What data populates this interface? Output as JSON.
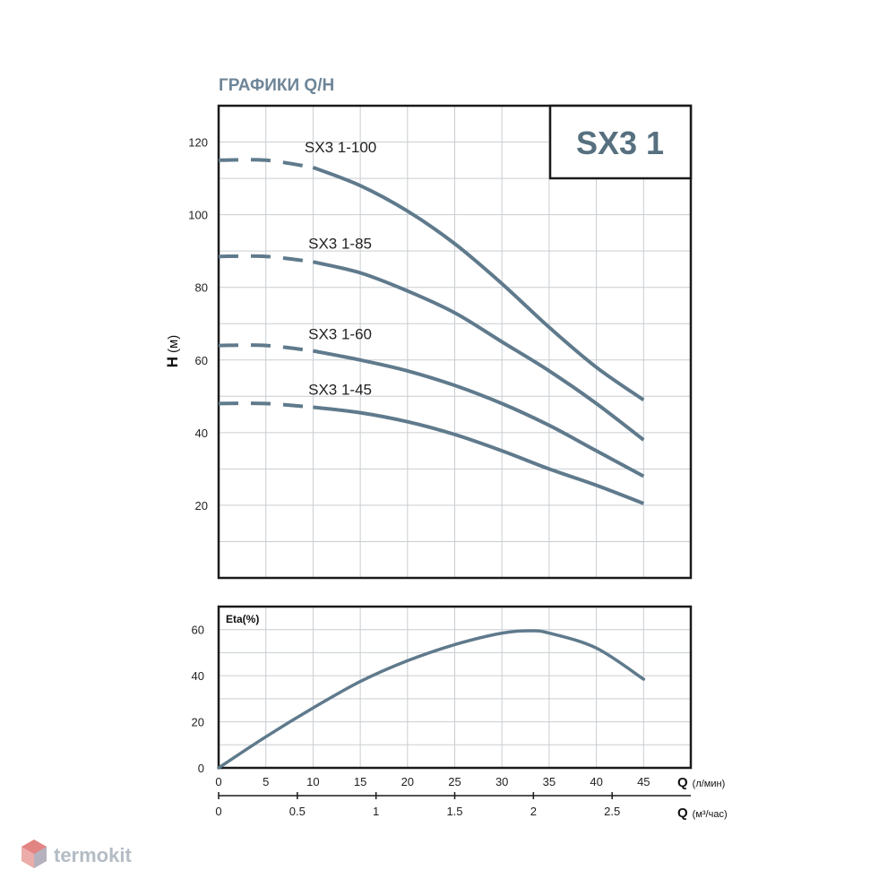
{
  "chart_data": [
    {
      "type": "line",
      "title": "ГРАФИКИ Q/H",
      "model": "SX3 1",
      "ylabel": "H",
      "ylabel_unit": "(м)",
      "xlim": [
        0,
        50
      ],
      "ylim": [
        0,
        130
      ],
      "yticks": [
        20,
        40,
        60,
        80,
        100,
        120
      ],
      "grid": true,
      "series": [
        {
          "name": "SX3 1-100",
          "x": [
            0,
            5,
            10,
            15,
            20,
            25,
            30,
            35,
            40,
            45
          ],
          "values": [
            115,
            115,
            113,
            108,
            101,
            92,
            81,
            69,
            58,
            49
          ],
          "label_x": 9.1,
          "label_y": 117.2
        },
        {
          "name": "SX3 1-85",
          "x": [
            0,
            5,
            10,
            15,
            20,
            25,
            30,
            35,
            40,
            45
          ],
          "values": [
            88.5,
            88.5,
            87,
            84,
            79,
            73,
            65,
            57,
            48,
            38
          ],
          "label_x": 9.5,
          "label_y": 90.7
        },
        {
          "name": "SX3 1-60",
          "x": [
            0,
            5,
            10,
            15,
            20,
            25,
            30,
            35,
            40,
            45
          ],
          "values": [
            64,
            64,
            62.5,
            60,
            57,
            53,
            48,
            42,
            35,
            28
          ],
          "label_x": 9.5,
          "label_y": 65.7
        },
        {
          "name": "SX3 1-45",
          "x": [
            0,
            5,
            10,
            15,
            20,
            25,
            30,
            35,
            40,
            45
          ],
          "values": [
            48,
            48,
            47,
            45.5,
            43,
            39.5,
            35,
            30,
            25.5,
            20.5
          ],
          "label_x": 9.5,
          "label_y": 50.4
        }
      ]
    },
    {
      "type": "line",
      "label": "Eta(%)",
      "xlim": [
        0,
        50
      ],
      "ylim": [
        0,
        70
      ],
      "yticks": [
        0,
        20,
        40,
        60
      ],
      "grid": true,
      "series": [
        {
          "x": [
            0,
            5,
            10,
            15,
            20,
            25,
            30,
            33,
            35,
            40,
            45
          ],
          "values": [
            0,
            13.5,
            26,
            37.5,
            46.5,
            53.5,
            58.5,
            59.5,
            58.5,
            52,
            38.5
          ]
        }
      ],
      "xaxis_primary": {
        "label": "Q",
        "unit": "(л/мин)",
        "ticks": [
          0,
          5,
          10,
          15,
          20,
          25,
          30,
          35,
          40,
          45
        ]
      },
      "xaxis_secondary": {
        "label": "Q",
        "unit": "(м³/час)",
        "ticks": [
          "0",
          "0.5",
          "1",
          "1.5",
          "2",
          "2.5"
        ]
      }
    }
  ],
  "watermark": "termokit",
  "colors": {
    "curve": "#5f7a8c",
    "grid": "#c9cdd1",
    "frame": "#1a1a1a",
    "title": "#6e8698",
    "watermark_logo": "#e07a78"
  }
}
